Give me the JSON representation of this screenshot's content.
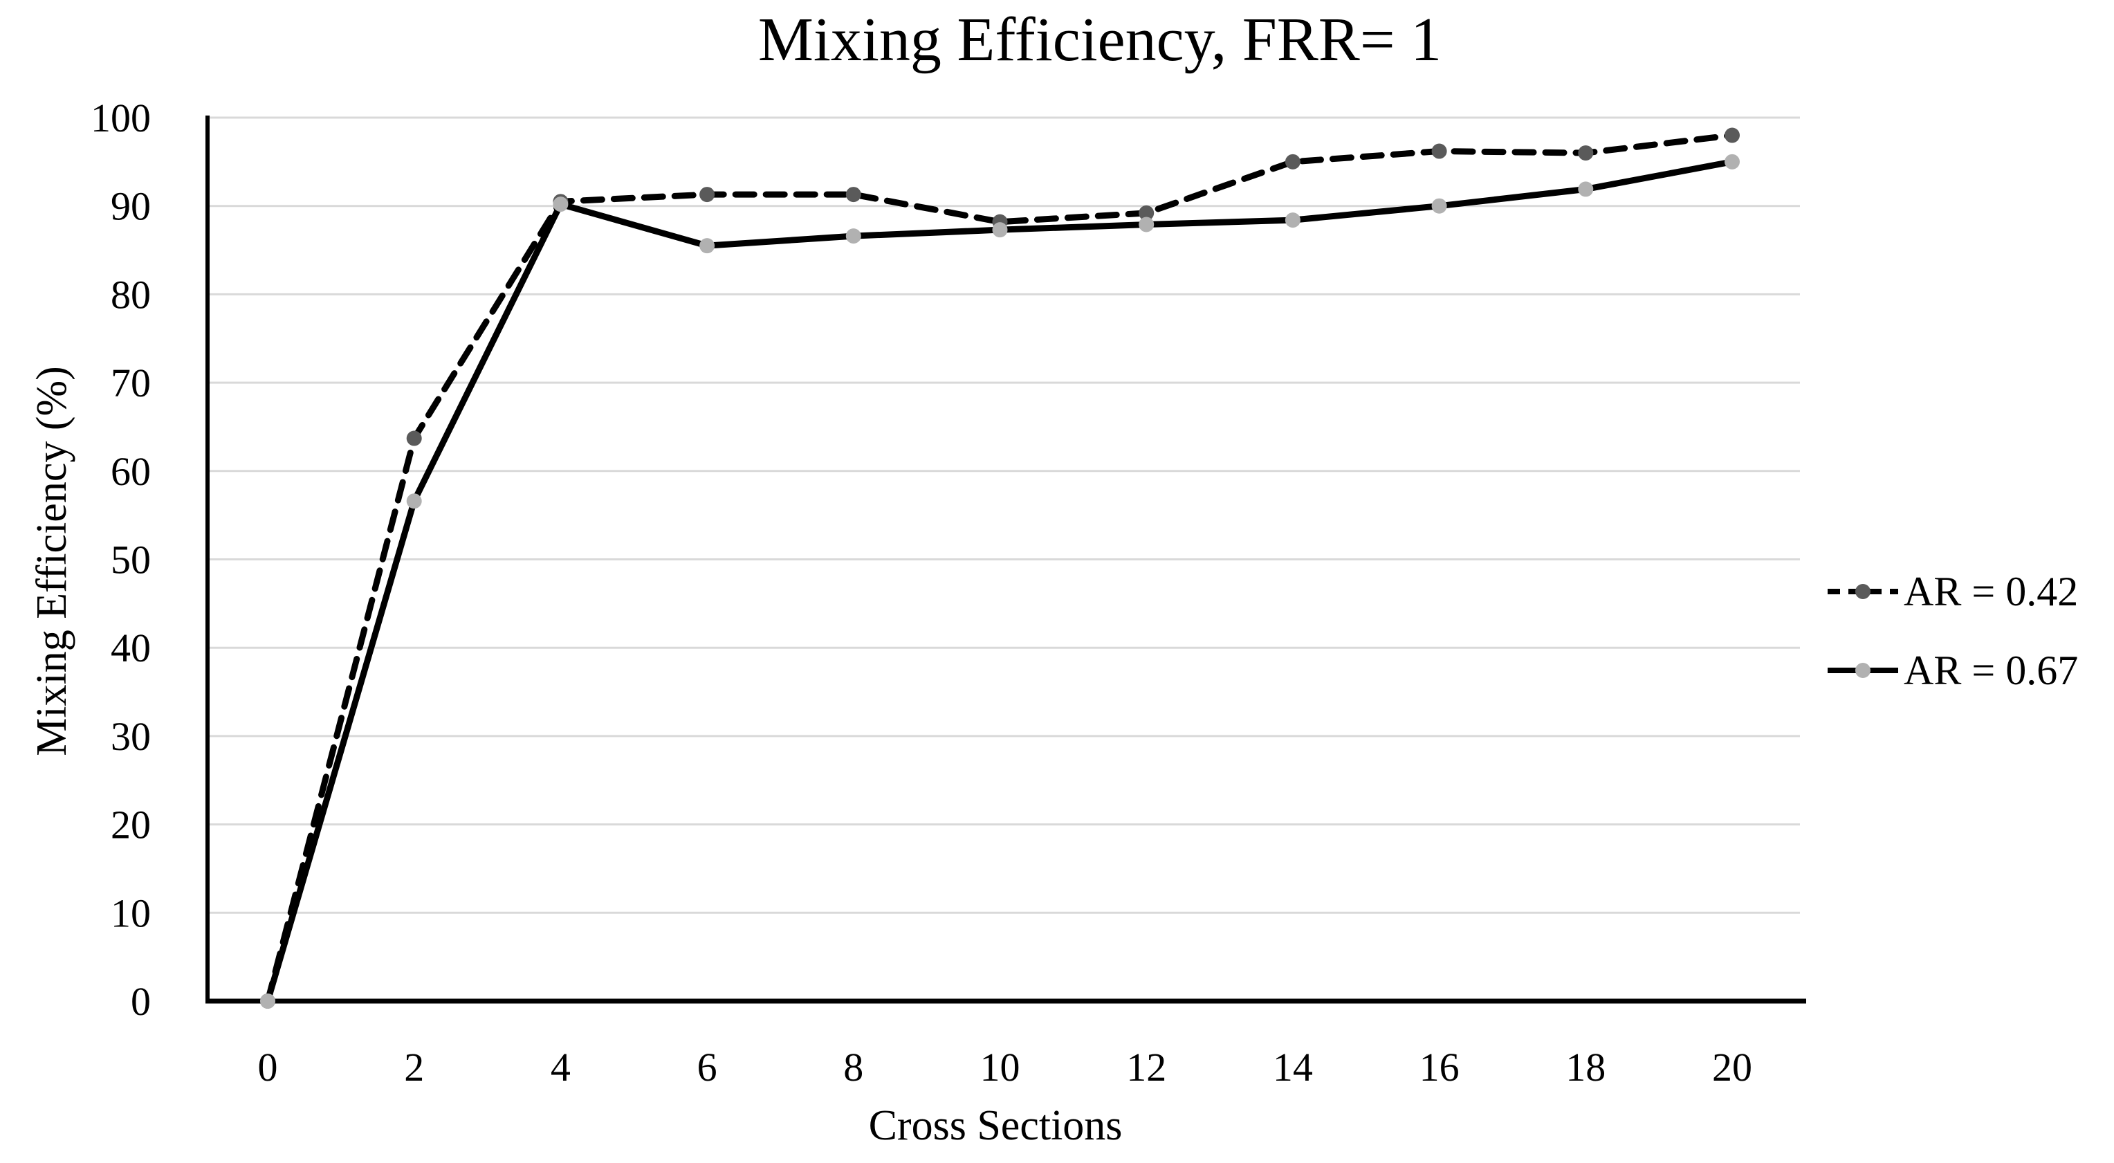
{
  "chart_data": {
    "type": "line",
    "title": "Mixing Efficiency, FRR= 1",
    "xlabel": "Cross Sections",
    "ylabel": "Mixing Efficiency (%)",
    "x": [
      0,
      2,
      4,
      6,
      8,
      10,
      12,
      14,
      16,
      18,
      20
    ],
    "x_ticks": [
      0,
      2,
      4,
      6,
      8,
      10,
      12,
      14,
      16,
      18,
      20
    ],
    "y_ticks": [
      0,
      10,
      20,
      30,
      40,
      50,
      60,
      70,
      80,
      90,
      100
    ],
    "xlim": [
      0,
      20
    ],
    "ylim": [
      0,
      100
    ],
    "grid": "horizontal-only",
    "legend_position": "right-center",
    "series": [
      {
        "name": "AR = 0.42",
        "values": [
          0,
          63.7,
          90.5,
          91.3,
          91.3,
          88.2,
          89.2,
          95,
          96.2,
          96,
          98
        ],
        "line_style": "dashed",
        "line_color": "#000000",
        "marker": "circle",
        "marker_color": "#5a5a5a"
      },
      {
        "name": "AR = 0.67",
        "values": [
          0,
          56.6,
          90.2,
          85.5,
          86.6,
          87.3,
          87.9,
          88.4,
          90,
          91.9,
          95
        ],
        "line_style": "solid",
        "line_color": "#000000",
        "marker": "circle",
        "marker_color": "#b1b1b1"
      }
    ],
    "colors": {
      "gridline": "#d9d9d9",
      "axis": "#000000",
      "text": "#000000",
      "background": "#ffffff"
    }
  }
}
